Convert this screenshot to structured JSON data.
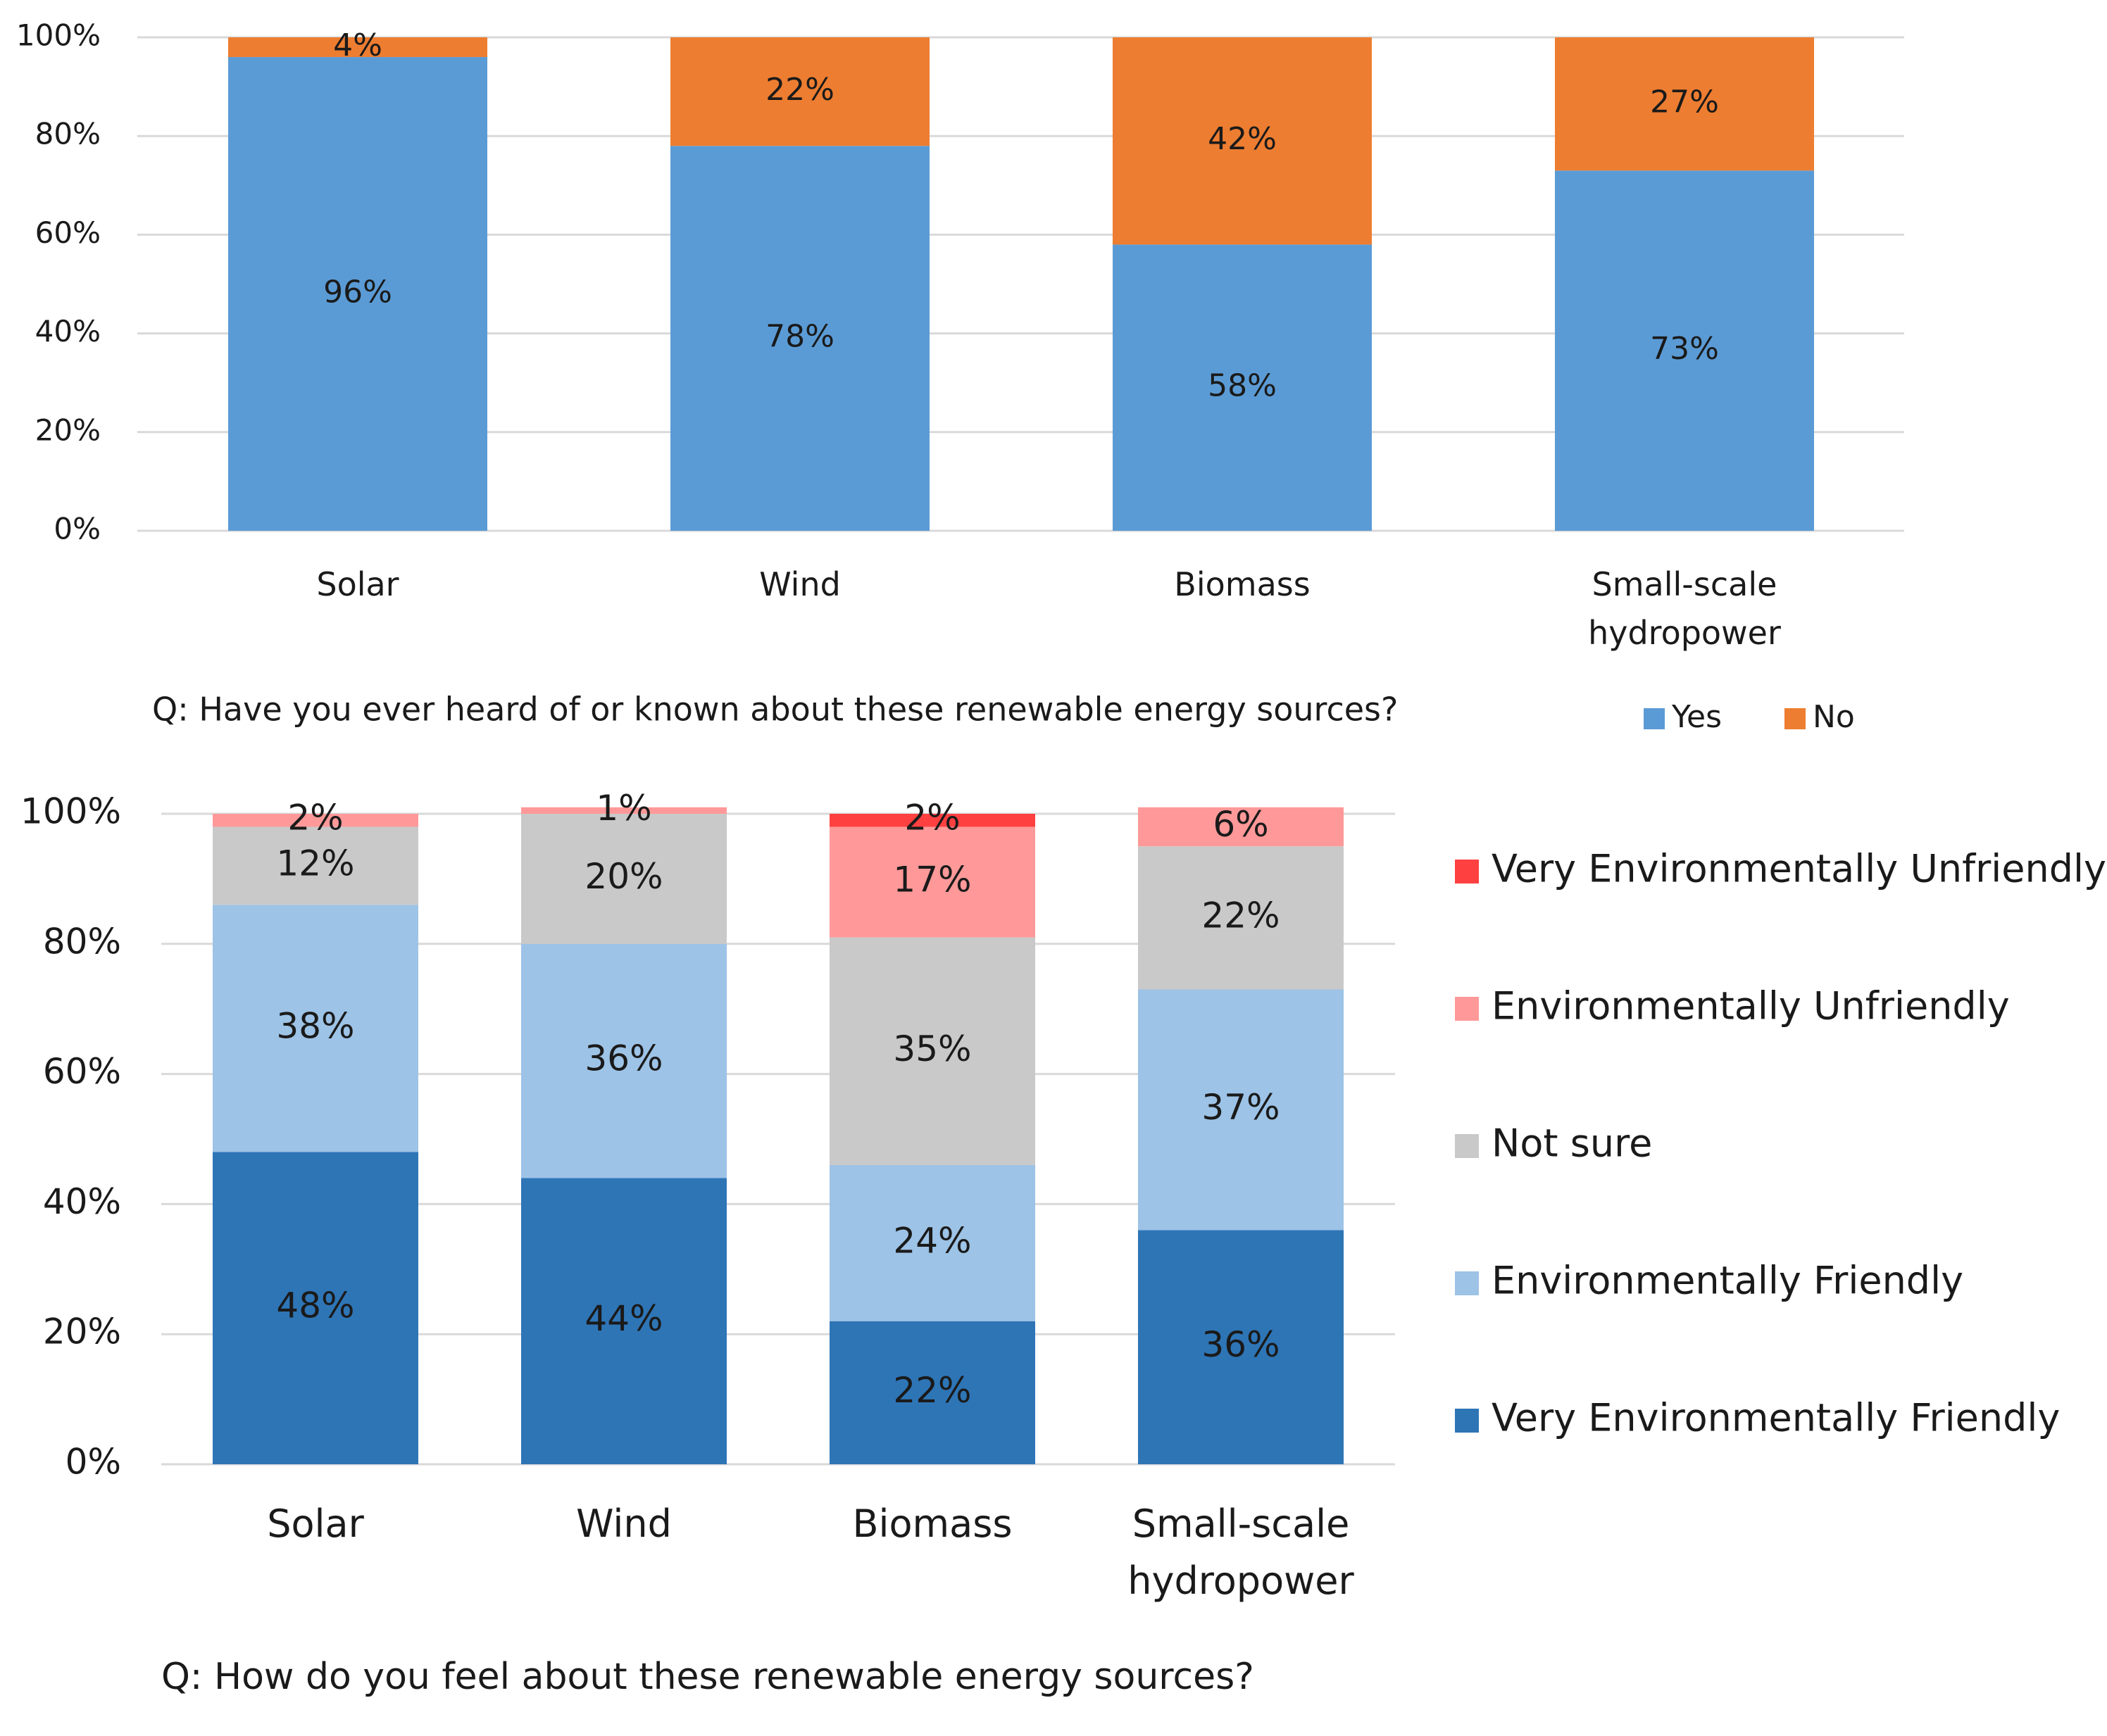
{
  "chart_data": [
    {
      "type": "stacked_bar",
      "caption": "Q: Have you ever heard of or known about these renewable energy sources?",
      "categories": [
        "Solar",
        "Wind",
        "Biomass",
        "Small-scale hydropower"
      ],
      "series": [
        {
          "name": "Yes",
          "color": "#5b9bd5",
          "values": [
            96,
            78,
            58,
            73
          ],
          "value_labels": [
            "96%",
            "78%",
            "58%",
            "73%"
          ]
        },
        {
          "name": "No",
          "color": "#ed7d31",
          "values": [
            4,
            22,
            42,
            27
          ],
          "value_labels": [
            "4%",
            "22%",
            "42%",
            "27%"
          ]
        }
      ],
      "ylim": [
        0,
        100
      ],
      "yticks": [
        {
          "value": 0,
          "label": "0%"
        },
        {
          "value": 20,
          "label": "20%"
        },
        {
          "value": 40,
          "label": "40%"
        },
        {
          "value": 60,
          "label": "60%"
        },
        {
          "value": 80,
          "label": "80%"
        },
        {
          "value": 100,
          "label": "100%"
        }
      ],
      "grid": true,
      "legend": "bottom-right"
    },
    {
      "type": "stacked_bar",
      "caption": "Q: How do you feel about these renewable energy sources?",
      "categories": [
        "Solar",
        "Wind",
        "Biomass",
        "Small-scale hydropower"
      ],
      "series": [
        {
          "name": "Very Environmentally Friendly",
          "color": "#2e75b6",
          "values": [
            48,
            44,
            22,
            36
          ],
          "value_labels": [
            "48%",
            "44%",
            "22%",
            "36%"
          ]
        },
        {
          "name": "Environmentally Friendly",
          "color": "#9dc3e6",
          "values": [
            38,
            36,
            24,
            37
          ],
          "value_labels": [
            "38%",
            "36%",
            "24%",
            "37%"
          ]
        },
        {
          "name": "Not sure",
          "color": "#c9c9c9",
          "values": [
            12,
            20,
            35,
            22
          ],
          "value_labels": [
            "12%",
            "20%",
            "35%",
            "22%"
          ]
        },
        {
          "name": "Environmentally Unfriendly",
          "color": "#ff9999",
          "values": [
            2,
            1,
            17,
            6
          ],
          "value_labels": [
            "2%",
            "1%",
            "17%",
            "6%"
          ]
        },
        {
          "name": "Very Environmentally Unfriendly",
          "color": "#ff4040",
          "values": [
            0,
            0,
            2,
            0
          ],
          "value_labels": [
            null,
            null,
            "2%",
            null
          ]
        }
      ],
      "ylim": [
        0,
        100
      ],
      "yticks": [
        {
          "value": 0,
          "label": "0%"
        },
        {
          "value": 20,
          "label": "20%"
        },
        {
          "value": 40,
          "label": "40%"
        },
        {
          "value": 60,
          "label": "60%"
        },
        {
          "value": 80,
          "label": "80%"
        },
        {
          "value": 100,
          "label": "100%"
        }
      ],
      "grid": true,
      "legend": "right"
    }
  ]
}
